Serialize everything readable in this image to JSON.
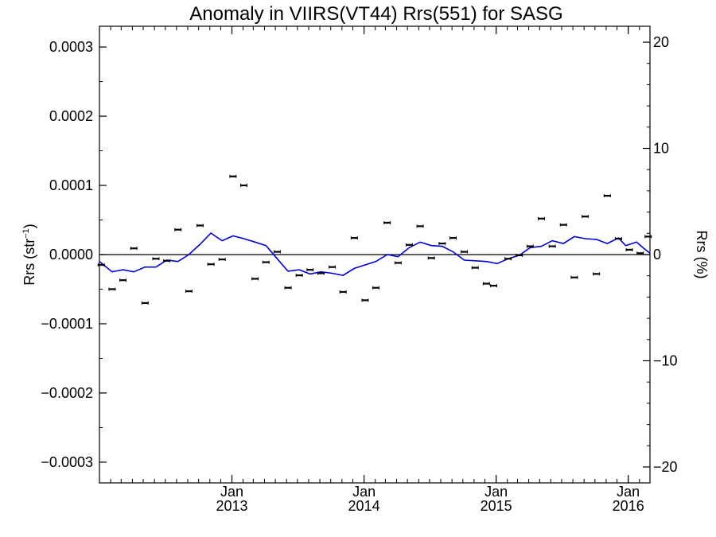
{
  "chart_data": {
    "type": "scatter",
    "title": "Anomaly in VIIRS(VT44) Rrs(551) for SASG",
    "ylabel_left": {
      "base": "Rrs (str",
      "sup": "−1",
      "tail": ")"
    },
    "ylabel_right": "Rrs (%)",
    "xlim": [
      "2012-01-01",
      "2016-03-01"
    ],
    "ylim_left": [
      -0.00033,
      0.00033
    ],
    "ylim_right": [
      -21.5,
      21.5
    ],
    "left_ticks": [
      {
        "value": 0.0003,
        "label": "0.0003"
      },
      {
        "value": 0.0002,
        "label": "0.0002"
      },
      {
        "value": 0.0001,
        "label": "0.0001"
      },
      {
        "value": 0.0,
        "label": "0.0000"
      },
      {
        "value": -0.0001,
        "label": "−0.0001"
      },
      {
        "value": -0.0002,
        "label": "−0.0002"
      },
      {
        "value": -0.0003,
        "label": "−0.0003"
      }
    ],
    "right_ticks": [
      {
        "value": 20,
        "label": "20"
      },
      {
        "value": 10,
        "label": "10"
      },
      {
        "value": 0,
        "label": "0"
      },
      {
        "value": -10,
        "label": "−10"
      },
      {
        "value": -20,
        "label": "−20"
      }
    ],
    "x_ticks": [
      {
        "date": "2013-01-01",
        "line1": "Jan",
        "line2": "2013"
      },
      {
        "date": "2014-01-01",
        "line1": "Jan",
        "line2": "2014"
      },
      {
        "date": "2015-01-01",
        "line1": "Jan",
        "line2": "2015"
      },
      {
        "date": "2016-01-01",
        "line1": "Jan",
        "line2": "2016"
      }
    ],
    "zero_line": true,
    "series": [
      {
        "kind": "points_with_error_bars",
        "color": "#000000",
        "points": [
          {
            "x": "2012-01-06",
            "y": -1.5e-05
          },
          {
            "x": "2012-02-05",
            "y": -5e-05
          },
          {
            "x": "2012-03-06",
            "y": -3.7e-05
          },
          {
            "x": "2012-04-05",
            "y": 9e-06
          },
          {
            "x": "2012-05-06",
            "y": -7e-05
          },
          {
            "x": "2012-06-05",
            "y": -6e-06
          },
          {
            "x": "2012-07-05",
            "y": -9e-06
          },
          {
            "x": "2012-08-05",
            "y": 3.6e-05
          },
          {
            "x": "2012-09-04",
            "y": -5.3e-05
          },
          {
            "x": "2012-10-05",
            "y": 4.2e-05
          },
          {
            "x": "2012-11-04",
            "y": -1.4e-05
          },
          {
            "x": "2012-12-05",
            "y": -7e-06
          },
          {
            "x": "2013-01-04",
            "y": 0.000113
          },
          {
            "x": "2013-02-03",
            "y": 0.0001
          },
          {
            "x": "2013-03-06",
            "y": -3.5e-05
          },
          {
            "x": "2013-04-05",
            "y": -1.1e-05
          },
          {
            "x": "2013-05-06",
            "y": 4e-06
          },
          {
            "x": "2013-06-05",
            "y": -4.8e-05
          },
          {
            "x": "2013-07-06",
            "y": -3e-05
          },
          {
            "x": "2013-08-05",
            "y": -2.2e-05
          },
          {
            "x": "2013-09-04",
            "y": -2.7e-05
          },
          {
            "x": "2013-10-05",
            "y": -1.8e-05
          },
          {
            "x": "2013-11-04",
            "y": -5.4e-05
          },
          {
            "x": "2013-12-05",
            "y": 2.4e-05
          },
          {
            "x": "2014-01-04",
            "y": -6.6e-05
          },
          {
            "x": "2014-02-03",
            "y": -4.8e-05
          },
          {
            "x": "2014-03-06",
            "y": 4.6e-05
          },
          {
            "x": "2014-04-05",
            "y": -1.2e-05
          },
          {
            "x": "2014-05-06",
            "y": 1.4e-05
          },
          {
            "x": "2014-06-05",
            "y": 4.1e-05
          },
          {
            "x": "2014-07-06",
            "y": -5e-06
          },
          {
            "x": "2014-08-05",
            "y": 1.6e-05
          },
          {
            "x": "2014-09-04",
            "y": 2.4e-05
          },
          {
            "x": "2014-10-05",
            "y": 4e-06
          },
          {
            "x": "2014-11-04",
            "y": -1.9e-05
          },
          {
            "x": "2014-12-05",
            "y": -4.2e-05
          },
          {
            "x": "2014-12-25",
            "y": -4.5e-05
          },
          {
            "x": "2015-02-03",
            "y": -6e-06
          },
          {
            "x": "2015-03-06",
            "y": -1e-06
          },
          {
            "x": "2015-04-05",
            "y": 1.2e-05
          },
          {
            "x": "2015-05-06",
            "y": 5.2e-05
          },
          {
            "x": "2015-06-05",
            "y": 1.2e-05
          },
          {
            "x": "2015-07-06",
            "y": 4.3e-05
          },
          {
            "x": "2015-08-05",
            "y": -3.3e-05
          },
          {
            "x": "2015-09-04",
            "y": 5.5e-05
          },
          {
            "x": "2015-10-05",
            "y": -2.8e-05
          },
          {
            "x": "2015-11-04",
            "y": 8.5e-05
          },
          {
            "x": "2015-12-05",
            "y": 2.3e-05
          },
          {
            "x": "2016-01-04",
            "y": 7e-06
          },
          {
            "x": "2016-02-03",
            "y": 2e-06
          },
          {
            "x": "2016-02-25",
            "y": 2.6e-05
          }
        ]
      },
      {
        "kind": "line",
        "color": "#0000dd",
        "points": [
          {
            "x": "2012-01-01",
            "y": -1e-05
          },
          {
            "x": "2012-02-05",
            "y": -2.5e-05
          },
          {
            "x": "2012-03-06",
            "y": -2.2e-05
          },
          {
            "x": "2012-04-05",
            "y": -2.5e-05
          },
          {
            "x": "2012-05-06",
            "y": -1.8e-05
          },
          {
            "x": "2012-06-05",
            "y": -1.8e-05
          },
          {
            "x": "2012-07-05",
            "y": -8e-06
          },
          {
            "x": "2012-08-05",
            "y": -1e-05
          },
          {
            "x": "2012-09-04",
            "y": 0.0
          },
          {
            "x": "2012-10-05",
            "y": 1.5e-05
          },
          {
            "x": "2012-11-04",
            "y": 3.1e-05
          },
          {
            "x": "2012-12-05",
            "y": 2e-05
          },
          {
            "x": "2013-01-04",
            "y": 2.7e-05
          },
          {
            "x": "2013-02-03",
            "y": 2.3e-05
          },
          {
            "x": "2013-03-06",
            "y": 1.8e-05
          },
          {
            "x": "2013-04-05",
            "y": 1.3e-05
          },
          {
            "x": "2013-05-06",
            "y": -6e-06
          },
          {
            "x": "2013-06-05",
            "y": -2.4e-05
          },
          {
            "x": "2013-07-06",
            "y": -2.2e-05
          },
          {
            "x": "2013-08-05",
            "y": -2.8e-05
          },
          {
            "x": "2013-09-04",
            "y": -2.5e-05
          },
          {
            "x": "2013-10-05",
            "y": -2.7e-05
          },
          {
            "x": "2013-11-04",
            "y": -3e-05
          },
          {
            "x": "2013-12-05",
            "y": -2e-05
          },
          {
            "x": "2014-01-04",
            "y": -1.5e-05
          },
          {
            "x": "2014-02-03",
            "y": -1e-05
          },
          {
            "x": "2014-03-06",
            "y": 0.0
          },
          {
            "x": "2014-04-05",
            "y": -3e-06
          },
          {
            "x": "2014-05-06",
            "y": 1e-05
          },
          {
            "x": "2014-06-05",
            "y": 1.8e-05
          },
          {
            "x": "2014-07-06",
            "y": 1.3e-05
          },
          {
            "x": "2014-08-05",
            "y": 1.2e-05
          },
          {
            "x": "2014-09-04",
            "y": 4e-06
          },
          {
            "x": "2014-10-05",
            "y": -8e-06
          },
          {
            "x": "2014-11-04",
            "y": -9e-06
          },
          {
            "x": "2014-12-05",
            "y": -1e-05
          },
          {
            "x": "2015-01-04",
            "y": -1.3e-05
          },
          {
            "x": "2015-02-03",
            "y": -6e-06
          },
          {
            "x": "2015-03-06",
            "y": -1e-06
          },
          {
            "x": "2015-04-05",
            "y": 1e-05
          },
          {
            "x": "2015-05-06",
            "y": 1.2e-05
          },
          {
            "x": "2015-06-05",
            "y": 2e-05
          },
          {
            "x": "2015-07-06",
            "y": 1.6e-05
          },
          {
            "x": "2015-08-05",
            "y": 2.6e-05
          },
          {
            "x": "2015-09-04",
            "y": 2.3e-05
          },
          {
            "x": "2015-10-05",
            "y": 2.2e-05
          },
          {
            "x": "2015-11-04",
            "y": 1.6e-05
          },
          {
            "x": "2015-12-05",
            "y": 2.4e-05
          },
          {
            "x": "2015-12-25",
            "y": 1.3e-05
          },
          {
            "x": "2016-01-24",
            "y": 1.8e-05
          },
          {
            "x": "2016-02-13",
            "y": 9e-06
          },
          {
            "x": "2016-03-01",
            "y": 2e-06
          }
        ]
      }
    ]
  }
}
